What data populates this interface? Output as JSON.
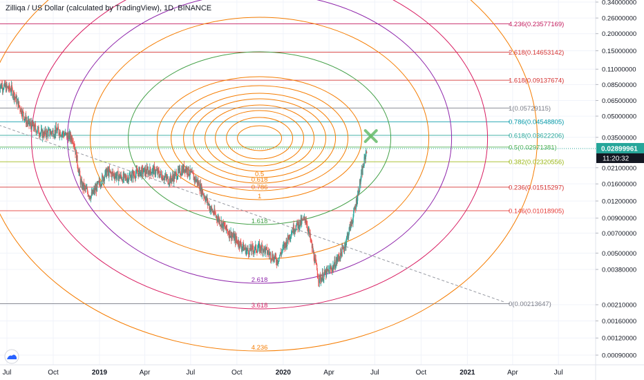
{
  "header": {
    "title": "Zilliqa / US Dollar (calculated by TradingView), 1D, BINANCE"
  },
  "colors": {
    "background": "#ffffff",
    "up": "#26a69a",
    "down": "#ef5350",
    "price_tag": "#26a69a",
    "time_tag": "#131722"
  },
  "chart_data": {
    "type": "line",
    "title": "Zilliqa / US Dollar (calculated by TradingView), 1D, BINANCE",
    "y_scale": "log",
    "ylim": [
      0.0008,
      0.34
    ],
    "x_ticks": [
      {
        "date": "2018-07-01",
        "label": "Jul"
      },
      {
        "date": "2018-10-01",
        "label": "Oct"
      },
      {
        "date": "2019-01-01",
        "label": "2019"
      },
      {
        "date": "2019-04-01",
        "label": "Apr"
      },
      {
        "date": "2019-07-01",
        "label": "Jul"
      },
      {
        "date": "2019-10-01",
        "label": "Oct"
      },
      {
        "date": "2020-01-01",
        "label": "2020"
      },
      {
        "date": "2020-04-01",
        "label": "Apr"
      },
      {
        "date": "2020-07-01",
        "label": "Jul"
      },
      {
        "date": "2020-10-01",
        "label": "Oct"
      },
      {
        "date": "2021-01-01",
        "label": "2021"
      },
      {
        "date": "2021-04-01",
        "label": "Apr"
      },
      {
        "date": "2021-07-01",
        "label": "Jul"
      }
    ],
    "y_ticks": [
      {
        "value": 0.34,
        "label": "0.34000000"
      },
      {
        "value": 0.26,
        "label": "0.26000000"
      },
      {
        "value": 0.2,
        "label": "0.20000000"
      },
      {
        "value": 0.15,
        "label": "0.15000000"
      },
      {
        "value": 0.11,
        "label": "0.11000000"
      },
      {
        "value": 0.085,
        "label": "0.08500000"
      },
      {
        "value": 0.065,
        "label": "0.06500000"
      },
      {
        "value": 0.05,
        "label": "0.05000000"
      },
      {
        "value": 0.035,
        "label": "0.03500000"
      },
      {
        "value": 0.021,
        "label": "0.02100000"
      },
      {
        "value": 0.016,
        "label": "0.01600000"
      },
      {
        "value": 0.012,
        "label": "0.01200000"
      },
      {
        "value": 0.009,
        "label": "0.00900000"
      },
      {
        "value": 0.007,
        "label": "0.00700000"
      },
      {
        "value": 0.005,
        "label": "0.00500000"
      },
      {
        "value": 0.0038,
        "label": "0.00380000"
      },
      {
        "value": 0.0021,
        "label": "0.00210000"
      },
      {
        "value": 0.0016,
        "label": "0.00160000"
      },
      {
        "value": 0.0012,
        "label": "0.00120000"
      },
      {
        "value": 0.0009,
        "label": "0.00090000"
      }
    ],
    "price_path": [
      {
        "date": "2018-06-15",
        "value": 0.085
      },
      {
        "date": "2018-07-10",
        "value": 0.078
      },
      {
        "date": "2018-08-10",
        "value": 0.045
      },
      {
        "date": "2018-09-10",
        "value": 0.037
      },
      {
        "date": "2018-10-10",
        "value": 0.039
      },
      {
        "date": "2018-11-10",
        "value": 0.034
      },
      {
        "date": "2018-11-25",
        "value": 0.016
      },
      {
        "date": "2018-12-15",
        "value": 0.013
      },
      {
        "date": "2019-01-15",
        "value": 0.0195
      },
      {
        "date": "2019-02-20",
        "value": 0.0175
      },
      {
        "date": "2019-03-20",
        "value": 0.0195
      },
      {
        "date": "2019-04-20",
        "value": 0.02
      },
      {
        "date": "2019-05-20",
        "value": 0.017
      },
      {
        "date": "2019-06-20",
        "value": 0.021
      },
      {
        "date": "2019-07-15",
        "value": 0.0165
      },
      {
        "date": "2019-08-10",
        "value": 0.0105
      },
      {
        "date": "2019-09-10",
        "value": 0.0074
      },
      {
        "date": "2019-10-20",
        "value": 0.0052
      },
      {
        "date": "2019-11-20",
        "value": 0.0055
      },
      {
        "date": "2019-12-20",
        "value": 0.0044
      },
      {
        "date": "2020-01-20",
        "value": 0.0075
      },
      {
        "date": "2020-02-15",
        "value": 0.0089
      },
      {
        "date": "2020-03-12",
        "value": 0.0032
      },
      {
        "date": "2020-04-10",
        "value": 0.004
      },
      {
        "date": "2020-05-01",
        "value": 0.0055
      },
      {
        "date": "2020-05-20",
        "value": 0.0095
      },
      {
        "date": "2020-06-15",
        "value": 0.029
      }
    ],
    "trendline": [
      {
        "date": "2018-06-15",
        "value": 0.043
      },
      {
        "date": "2021-03-15",
        "value": 0.0022
      }
    ],
    "fib_levels": [
      {
        "ratio": "4.236",
        "value": 0.23577169,
        "label": "4.236(0.23577169)",
        "color": "#c2185b"
      },
      {
        "ratio": "2.618",
        "value": 0.14653142,
        "label": "2.618(0.14653142)",
        "color": "#d32f2f"
      },
      {
        "ratio": "1.618",
        "value": 0.09137674,
        "label": "1.618(0.09137674)",
        "color": "#d32f2f"
      },
      {
        "ratio": "1",
        "value": 0.05729115,
        "label": "1(0.05729115)",
        "color": "#787b86"
      },
      {
        "ratio": "0.786",
        "value": 0.04548805,
        "label": "0.786(0.04548805)",
        "color": "#0097a7"
      },
      {
        "ratio": "0.618",
        "value": 0.03622206,
        "label": "0.618(0.03622206)",
        "color": "#26a69a"
      },
      {
        "ratio": "0.5",
        "value": 0.02971381,
        "label": "0.5(0.02971381)",
        "color": "#4caf50"
      },
      {
        "ratio": "0.382",
        "value": 0.02320556,
        "label": "0.382(0.02320556)",
        "color": "#9bb716"
      },
      {
        "ratio": "0.236",
        "value": 0.01515297,
        "label": "0.236(0.01515297)",
        "color": "#d32f2f"
      },
      {
        "ratio": "0.146",
        "value": 0.01018905,
        "label": "0.146(0.01018905)",
        "color": "#e53935"
      },
      {
        "ratio": "0",
        "value": 0.00213647,
        "label": "0(0.00213647)",
        "color": "#787b86"
      }
    ],
    "fib_circles": {
      "center": {
        "date": "2019-11-15",
        "value": 0.0345
      },
      "circles": [
        {
          "label": "",
          "color": "#f57c00"
        },
        {
          "label": "",
          "color": "#f57c00"
        },
        {
          "label": "",
          "color": "#f57c00"
        },
        {
          "label": "",
          "color": "#f57c00"
        },
        {
          "label": "0.5",
          "color": "#f57c00"
        },
        {
          "label": "0.618",
          "color": "#f57c00"
        },
        {
          "label": "0.786",
          "color": "#f57c00"
        },
        {
          "label": "1",
          "color": "#f57c00"
        },
        {
          "label": "1.618",
          "color": "#43a047"
        },
        {
          "label": "",
          "color": "#f57c00"
        },
        {
          "label": "2.618",
          "color": "#8e24aa"
        },
        {
          "label": "3.618",
          "color": "#d81b60"
        },
        {
          "label": "4.236",
          "color": "#f57c00"
        }
      ]
    },
    "last_price": {
      "value": 0.02899961,
      "label": "0.02899961",
      "time": "11:20:32"
    }
  }
}
